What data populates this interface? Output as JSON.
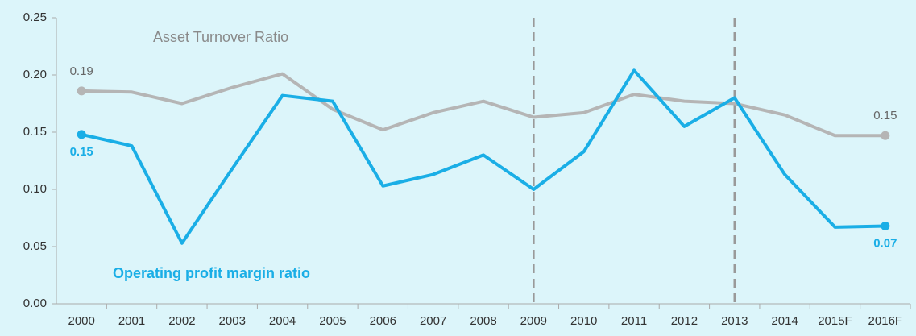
{
  "chart_data": {
    "type": "line",
    "categories": [
      "2000",
      "2001",
      "2002",
      "2003",
      "2004",
      "2005",
      "2006",
      "2007",
      "2008",
      "2009",
      "2010",
      "2011",
      "2012",
      "2013",
      "2014",
      "2015F",
      "2016F"
    ],
    "ylim": [
      0,
      0.25
    ],
    "yticks": [
      {
        "value": 0,
        "label": "0.00"
      },
      {
        "value": 0.05,
        "label": "0.05"
      },
      {
        "value": 0.1,
        "label": "0.10"
      },
      {
        "value": 0.15,
        "label": "0.15"
      },
      {
        "value": 0.2,
        "label": "0.20"
      },
      {
        "value": 0.25,
        "label": "0.25"
      }
    ],
    "reference_lines": [
      "2009",
      "2013"
    ],
    "series": [
      {
        "name": "Asset Turnover Ratio",
        "color": "#b5b5b5",
        "label_position": "above",
        "values": [
          0.186,
          0.185,
          0.175,
          0.189,
          0.201,
          0.17,
          0.152,
          0.167,
          0.177,
          0.163,
          0.167,
          0.183,
          0.177,
          0.175,
          0.165,
          0.147,
          0.147
        ],
        "value_labels": [
          "0.19",
          null,
          null,
          null,
          null,
          null,
          null,
          null,
          null,
          null,
          null,
          null,
          null,
          null,
          null,
          null,
          "0.15"
        ]
      },
      {
        "name": "Operating profit margin ratio",
        "color": "#1aaee6",
        "label_position": "below",
        "values": [
          0.148,
          0.138,
          0.053,
          0.118,
          0.182,
          0.177,
          0.103,
          0.113,
          0.13,
          0.1,
          0.133,
          0.204,
          0.155,
          0.18,
          0.113,
          0.067,
          0.068
        ],
        "value_labels": [
          "0.15",
          null,
          null,
          null,
          null,
          null,
          null,
          null,
          null,
          null,
          null,
          null,
          null,
          null,
          null,
          null,
          "0.07"
        ]
      }
    ]
  }
}
